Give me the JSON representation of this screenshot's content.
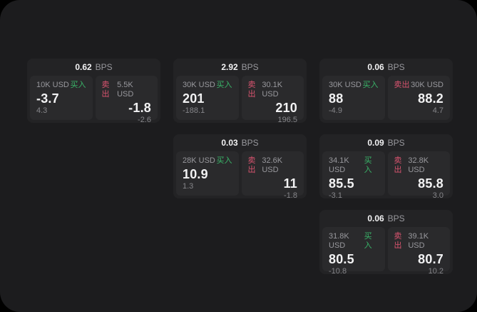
{
  "labels": {
    "bps": "BPS",
    "buy": "买入",
    "sell": "卖出"
  },
  "colors": {
    "panel_bg": "#1c1c1e",
    "card_bg": "#232325",
    "subpanel_bg": "#2a2a2c",
    "text_white": "#f2f2f3",
    "text_gray": "#98989d",
    "text_dim": "#86868a",
    "buy": "#39b569",
    "sell": "#d9546f"
  },
  "cards": [
    {
      "bps": "0.62",
      "buy": {
        "amount": "10K USD",
        "value": "-3.7",
        "sub": "4.3"
      },
      "sell": {
        "amount": "5.5K USD",
        "value": "-1.8",
        "sub": "-2.6"
      }
    },
    {
      "bps": "2.92",
      "buy": {
        "amount": "30K USD",
        "value": "201",
        "sub": "-188.1"
      },
      "sell": {
        "amount": "30.1K USD",
        "value": "210",
        "sub": "196.5"
      }
    },
    {
      "bps": "0.06",
      "buy": {
        "amount": "30K USD",
        "value": "88",
        "sub": "-4.9"
      },
      "sell": {
        "amount": "30K USD",
        "value": "88.2",
        "sub": "4.7"
      }
    },
    {
      "bps": "0.03",
      "buy": {
        "amount": "28K USD",
        "value": "10.9",
        "sub": "1.3"
      },
      "sell": {
        "amount": "32.6K USD",
        "value": "11",
        "sub": "-1.8"
      }
    },
    {
      "bps": "0.09",
      "buy": {
        "amount": "34.1K USD",
        "value": "85.5",
        "sub": "-3.1"
      },
      "sell": {
        "amount": "32.8K USD",
        "value": "85.8",
        "sub": "3.0"
      }
    },
    {
      "bps": "0.06",
      "buy": {
        "amount": "31.8K USD",
        "value": "80.5",
        "sub": "-10.8"
      },
      "sell": {
        "amount": "39.1K USD",
        "value": "80.7",
        "sub": "10.2"
      }
    }
  ]
}
